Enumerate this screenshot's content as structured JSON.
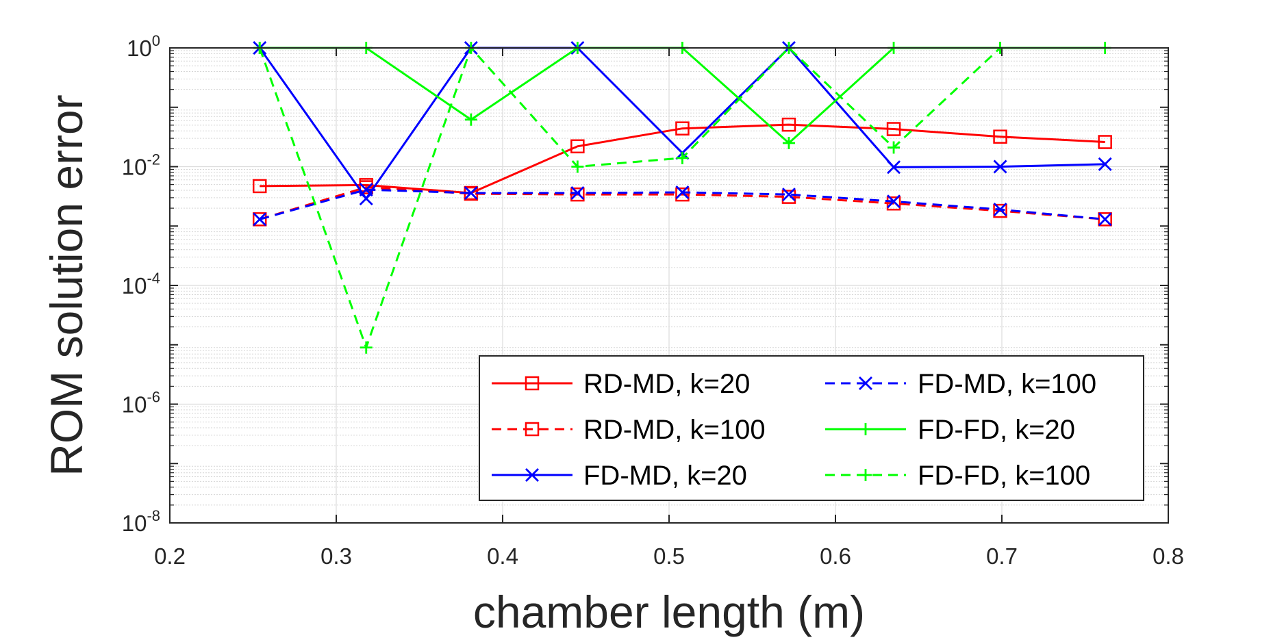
{
  "chart_data": {
    "type": "line",
    "xlabel": "chamber length (m)",
    "ylabel": "ROM solution error",
    "xlim": [
      0.2,
      0.8
    ],
    "ylim": [
      1e-08,
      1
    ],
    "yscale": "log",
    "xticks": [
      "0.2",
      "0.3",
      "0.4",
      "0.5",
      "0.6",
      "0.7",
      "0.8"
    ],
    "yticks": [
      {
        "base": "10",
        "exp": "-8"
      },
      {
        "base": "10",
        "exp": "-6"
      },
      {
        "base": "10",
        "exp": "-4"
      },
      {
        "base": "10",
        "exp": "-2"
      },
      {
        "base": "10",
        "exp": "0"
      }
    ],
    "grid": true,
    "legend_position": "bottom-right",
    "x": [
      0.254,
      0.318,
      0.381,
      0.445,
      0.508,
      0.572,
      0.635,
      0.699,
      0.762
    ],
    "series": [
      {
        "name": "RD-MD, k=20",
        "color": "#ff0000",
        "dash": "solid",
        "marker": "square",
        "values": [
          0.0047,
          0.0049,
          0.0036,
          0.022,
          0.044,
          0.051,
          0.043,
          0.032,
          0.026
        ]
      },
      {
        "name": "RD-MD, k=100",
        "color": "#ff0000",
        "dash": "dashed",
        "marker": "square",
        "values": [
          0.0013,
          0.0045,
          0.0035,
          0.0034,
          0.0034,
          0.0031,
          0.0024,
          0.0018,
          0.0013
        ]
      },
      {
        "name": "FD-MD, k=20",
        "color": "#0000ff",
        "dash": "solid",
        "marker": "x",
        "values": [
          1.0,
          0.0029,
          1.0,
          1.0,
          0.017,
          1.0,
          0.0098,
          0.01,
          0.011
        ]
      },
      {
        "name": "FD-MD, k=100",
        "color": "#0000ff",
        "dash": "dashed",
        "marker": "x",
        "values": [
          0.0013,
          0.0041,
          0.0036,
          0.0036,
          0.0037,
          0.0034,
          0.0026,
          0.0019,
          0.0013
        ]
      },
      {
        "name": "FD-FD, k=20",
        "color": "#00ff00",
        "dash": "solid",
        "marker": "plus",
        "values": [
          1.0,
          1.0,
          0.062,
          1.0,
          1.0,
          0.025,
          1.0,
          1.0,
          1.0
        ]
      },
      {
        "name": "FD-FD, k=100",
        "color": "#00ff00",
        "dash": "dashed",
        "marker": "plus",
        "values": [
          1.0,
          9e-06,
          1.0,
          0.01,
          0.014,
          1.0,
          0.021,
          1.0,
          null
        ]
      }
    ]
  }
}
